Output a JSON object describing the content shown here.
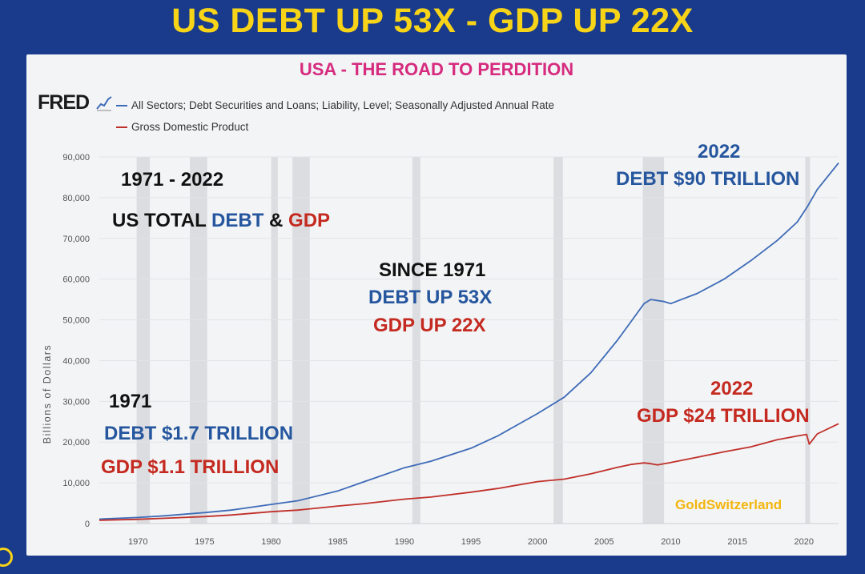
{
  "header": {
    "title": "US DEBT UP 53X - GDP UP 22X"
  },
  "panel": {
    "subtitle": "USA - THE ROAD TO PERDITION",
    "logo": "FRED",
    "watermark": "GoldSwitzerland"
  },
  "colors": {
    "debt": "#3e6bb7",
    "gdp": "#c0302a",
    "recession": "#dcdde0",
    "title": "#f7d417",
    "subtitle": "#d62b7e"
  },
  "annotations": {
    "range_years": "1971 - 2022",
    "us_total": "US TOTAL",
    "debt_word": "DEBT",
    "amp": "&",
    "gdp_word": "GDP",
    "since_1971": "SINCE 1971",
    "debt_up": "DEBT UP 53X",
    "gdp_up": "GDP UP 22X",
    "year_2022_top": "2022",
    "debt_90": "DEBT $90 TRILLION",
    "year_2022_mid": "2022",
    "gdp_24": "GDP $24 TRILLION",
    "year_1971": "1971",
    "debt_17": "DEBT $1.7 TRILLION",
    "gdp_11": "GDP $1.1 TRILLION"
  },
  "chart_data": {
    "type": "line",
    "ylabel": "Billions of Dollars",
    "xlim": [
      1967.1,
      2022.6
    ],
    "ylim": [
      0,
      90000
    ],
    "yticks": [
      0,
      10000,
      20000,
      30000,
      40000,
      50000,
      60000,
      70000,
      80000,
      90000
    ],
    "ytick_labels": [
      "0",
      "10,000",
      "20,000",
      "30,000",
      "40,000",
      "50,000",
      "60,000",
      "70,000",
      "80,000",
      "90,000"
    ],
    "xticks": [
      1970,
      1975,
      1980,
      1985,
      1990,
      1995,
      2000,
      2005,
      2010,
      2015,
      2020
    ],
    "recessions": [
      [
        1969.9,
        1970.9
      ],
      [
        1973.9,
        1975.2
      ],
      [
        1980.0,
        1980.5
      ],
      [
        1981.6,
        1982.9
      ],
      [
        1990.6,
        1991.2
      ],
      [
        2001.2,
        2001.9
      ],
      [
        2007.9,
        2009.5
      ],
      [
        2020.1,
        2020.4
      ]
    ],
    "series": [
      {
        "name": "All Sectors; Debt Securities and Loans; Liability, Level; Seasonally Adjusted Annual Rate",
        "color": "#3e6bb7",
        "x": [
          1967.1,
          1970,
          1972,
          1975,
          1977,
          1980,
          1982,
          1985,
          1987,
          1990,
          1992,
          1995,
          1997,
          2000,
          2002,
          2004,
          2006,
          2007,
          2008,
          2008.5,
          2009.5,
          2010,
          2012,
          2014,
          2016,
          2018,
          2019.5,
          2020.3,
          2021,
          2022.6
        ],
        "values": [
          1100,
          1500,
          1900,
          2700,
          3300,
          4700,
          5600,
          8000,
          10300,
          13700,
          15300,
          18500,
          21500,
          27000,
          31000,
          37000,
          45000,
          49500,
          54000,
          55000,
          54500,
          54000,
          56500,
          60000,
          64500,
          69500,
          74000,
          78000,
          82000,
          88500
        ]
      },
      {
        "name": "Gross Domestic Product",
        "color": "#c0302a",
        "x": [
          1967.1,
          1970,
          1972,
          1975,
          1977,
          1980,
          1982,
          1985,
          1987,
          1990,
          1992,
          1995,
          1997,
          2000,
          2002,
          2004,
          2006,
          2007,
          2008,
          2008.5,
          2009,
          2010,
          2012,
          2014,
          2016,
          2018,
          2019.5,
          2020.2,
          2020.4,
          2021,
          2022.6
        ],
        "values": [
          800,
          1050,
          1300,
          1700,
          2100,
          2900,
          3300,
          4300,
          4900,
          6000,
          6500,
          7700,
          8600,
          10300,
          10900,
          12200,
          13800,
          14500,
          14900,
          14700,
          14400,
          15000,
          16300,
          17600,
          18800,
          20600,
          21500,
          21900,
          19500,
          22000,
          24500
        ]
      }
    ]
  }
}
